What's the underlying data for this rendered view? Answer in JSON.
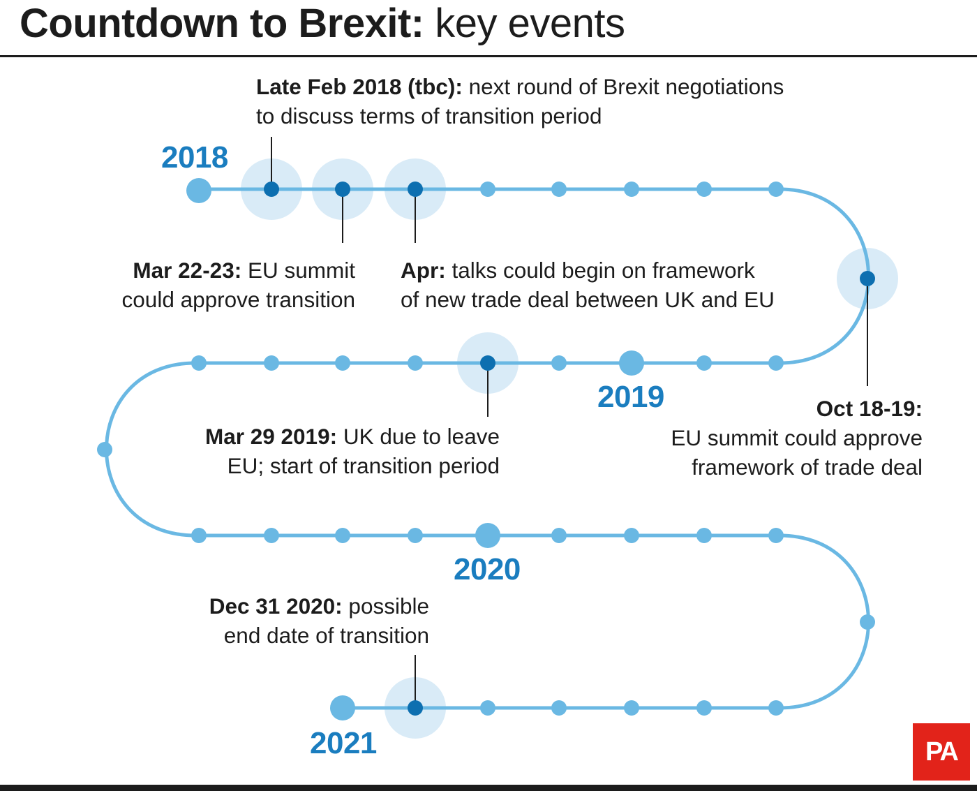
{
  "title": {
    "bold": "Countdown to Brexit:",
    "regular": "key events"
  },
  "years": [
    "2018",
    "2019",
    "2020",
    "2021"
  ],
  "events": [
    {
      "date": "Late Feb 2018 (tbc):",
      "line1_rest": "next round of Brexit negotiations",
      "line2": "to discuss terms of transition period"
    },
    {
      "date": "Mar 22-23:",
      "line1_rest": "EU summit",
      "line2": "could approve transition"
    },
    {
      "date": "Apr:",
      "line1_rest": "talks could begin on framework",
      "line2": "of new trade deal between UK and EU"
    },
    {
      "date": "Oct 18-19:",
      "line1_rest": "",
      "line2": "EU summit could approve",
      "line3": "framework of trade deal"
    },
    {
      "date": "Mar 29 2019:",
      "line1_rest": "UK due to leave",
      "line2": "EU; start of transition period"
    },
    {
      "date": "Dec 31 2020:",
      "line1_rest": "possible",
      "line2": "end date of transition"
    }
  ],
  "colors": {
    "track": "#6ab8e3",
    "event_dot": "#0d6fb0",
    "halo": "#d9ebf7",
    "year": "#1a7dbf",
    "logo": "#e2231a"
  },
  "logo": "PA"
}
